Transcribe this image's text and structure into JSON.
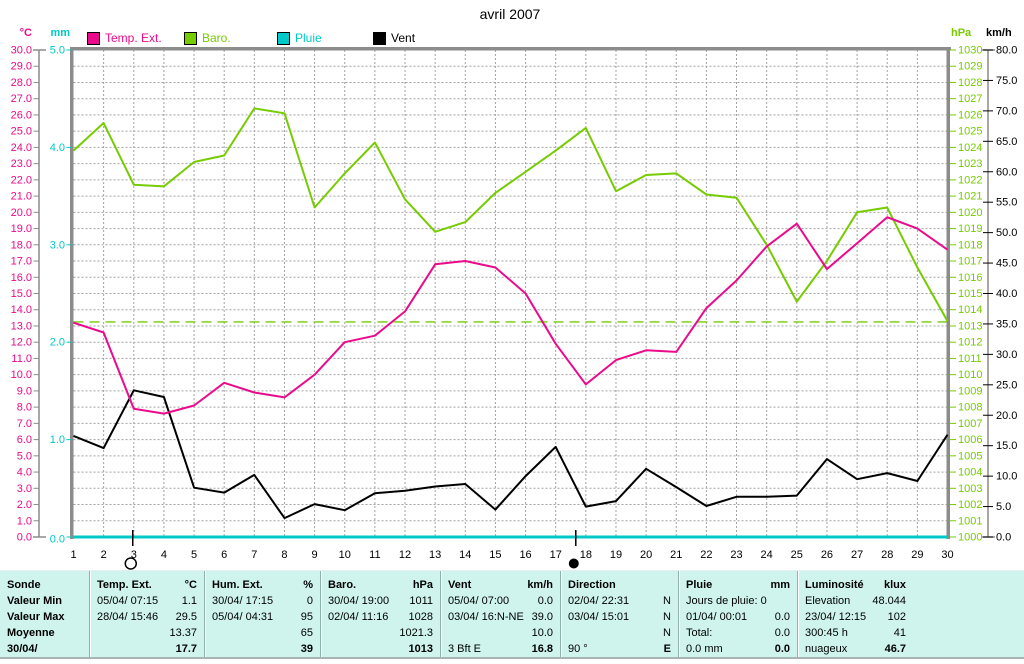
{
  "title": "avril 2007",
  "legend": {
    "items": [
      {
        "label": "Temp. Ext.",
        "color": "#ea0b8c"
      },
      {
        "label": "Baro.",
        "color": "#76cc01"
      },
      {
        "label": "Pluie",
        "color": "#00c9c9"
      },
      {
        "label": "Vent",
        "color": "#000000"
      }
    ]
  },
  "chart_data": {
    "type": "line",
    "title": "avril 2007",
    "grid": true,
    "x_days": [
      1,
      2,
      3,
      4,
      5,
      6,
      7,
      8,
      9,
      10,
      11,
      12,
      13,
      14,
      15,
      16,
      17,
      18,
      19,
      20,
      21,
      22,
      23,
      24,
      25,
      26,
      27,
      28,
      29,
      30
    ],
    "axes": {
      "temp": {
        "label": "°C",
        "min": 0,
        "max": 30,
        "step": 1,
        "decimals": 1,
        "color": "#ea0b8c",
        "side": "outer-left"
      },
      "rain": {
        "label": "mm",
        "min": 0,
        "max": 5,
        "step": 1,
        "decimals": 1,
        "color": "#00c9c9",
        "side": "inner-left"
      },
      "baro": {
        "label": "hPa",
        "min": 1000,
        "max": 1030,
        "step": 1,
        "decimals": 0,
        "color": "#76cc01",
        "side": "inner-right"
      },
      "wind": {
        "label": "km/h",
        "min": 0,
        "max": 80,
        "step": 5,
        "decimals": 1,
        "color": "#000000",
        "side": "outer-right"
      }
    },
    "series": [
      {
        "name": "Pluie",
        "axis": "rain",
        "unit": "mm",
        "color": "#00c9c9",
        "width": 3,
        "values": [
          0,
          0,
          0,
          0,
          0,
          0,
          0,
          0,
          0,
          0,
          0,
          0,
          0,
          0,
          0,
          0,
          0,
          0,
          0,
          0,
          0,
          0,
          0,
          0,
          0,
          0,
          0,
          0,
          0,
          0
        ]
      },
      {
        "name": "Baro.",
        "axis": "baro",
        "unit": "hPa",
        "color": "#76cc01",
        "width": 2,
        "values": [
          1023.8,
          1025.5,
          1021.7,
          1021.6,
          1023.1,
          1023.5,
          1026.4,
          1026.1,
          1020.3,
          1022.4,
          1024.3,
          1020.8,
          1018.8,
          1019.4,
          1021.2,
          1022.5,
          1023.8,
          1025.2,
          1021.3,
          1022.3,
          1022.4,
          1021.1,
          1020.9,
          1018.0,
          1014.5,
          1017.0,
          1020.0,
          1020.3,
          1016.6,
          1013.3
        ]
      },
      {
        "name": "Vent",
        "axis": "wind",
        "unit": "km/h",
        "color": "#000000",
        "width": 2,
        "values": [
          16.6,
          14.6,
          24.1,
          23.0,
          8.1,
          7.3,
          10.2,
          3.1,
          5.4,
          4.4,
          7.2,
          7.6,
          8.3,
          8.7,
          4.5,
          10.0,
          14.8,
          5.0,
          5.9,
          11.2,
          8.2,
          5.1,
          6.6,
          6.6,
          6.8,
          12.8,
          9.5,
          10.5,
          9.2,
          16.8
        ]
      },
      {
        "name": "Temp. Ext.",
        "axis": "temp",
        "unit": "°C",
        "color": "#ea0b8c",
        "width": 2,
        "values": [
          13.2,
          12.6,
          7.9,
          7.6,
          8.1,
          9.5,
          8.9,
          8.6,
          10.0,
          12.0,
          12.4,
          13.9,
          16.8,
          17.0,
          16.6,
          15.0,
          11.9,
          9.4,
          10.9,
          11.5,
          11.4,
          14.1,
          15.8,
          17.9,
          19.3,
          16.5,
          18.1,
          19.7,
          19.0,
          17.7
        ]
      }
    ],
    "reference_line": {
      "axis": "baro",
      "value": 1013.25,
      "color": "#76cc01",
      "style": "dashed"
    },
    "moon_markers": [
      {
        "day": 2.9,
        "phase": "full-moon"
      },
      {
        "day": 17.6,
        "phase": "new-moon"
      }
    ]
  },
  "stats_table": {
    "bg": "#cff4ee",
    "row_labels": [
      "Sonde",
      "Valeur Min",
      "Valeur Max",
      "Moyenne",
      "30/04/"
    ],
    "columns": [
      {
        "name": "Temp. Ext.",
        "unit": "°C",
        "rows": [
          [
            "05/04/ 07:15",
            "1.1"
          ],
          [
            "28/04/ 15:46",
            "29.5"
          ],
          [
            "",
            "13.37"
          ],
          [
            "",
            "17.7"
          ]
        ]
      },
      {
        "name": "Hum. Ext.",
        "unit": "%",
        "rows": [
          [
            "30/04/ 17:15",
            "0"
          ],
          [
            "05/04/ 04:31",
            "95"
          ],
          [
            "",
            "65"
          ],
          [
            "",
            "39"
          ]
        ]
      },
      {
        "name": "Baro.",
        "unit": "hPa",
        "rows": [
          [
            "30/04/ 19:00",
            "1011"
          ],
          [
            "02/04/ 11:16",
            "1028"
          ],
          [
            "",
            "1021.3"
          ],
          [
            "",
            "1013"
          ]
        ]
      },
      {
        "name": "Vent",
        "unit": "km/h",
        "rows": [
          [
            "05/04/ 07:00",
            "0.0"
          ],
          [
            "03/04/ 16:N-NE",
            "39.0"
          ],
          [
            "",
            "10.0"
          ],
          [
            "3 Bft E",
            "16.8"
          ]
        ]
      },
      {
        "name": "Direction",
        "unit": "",
        "rows": [
          [
            "02/04/ 22:31",
            "N"
          ],
          [
            "03/04/ 15:01",
            "N"
          ],
          [
            "",
            "N"
          ],
          [
            "90 °",
            "E"
          ]
        ]
      },
      {
        "name": "Pluie",
        "unit": "mm",
        "rows": [
          [
            "Jours de pluie: 0",
            ""
          ],
          [
            "01/04/ 00:01",
            "0.0"
          ],
          [
            "Total:",
            "0.0"
          ],
          [
            "0.0 mm",
            "0.0"
          ]
        ]
      },
      {
        "name": "Luminosité",
        "unit": "klux",
        "rows": [
          [
            "Elevation",
            "48.044"
          ],
          [
            "23/04/ 12:15",
            "102"
          ],
          [
            "300:45 h",
            "41"
          ],
          [
            "nuageux",
            "46.7"
          ]
        ]
      }
    ]
  }
}
